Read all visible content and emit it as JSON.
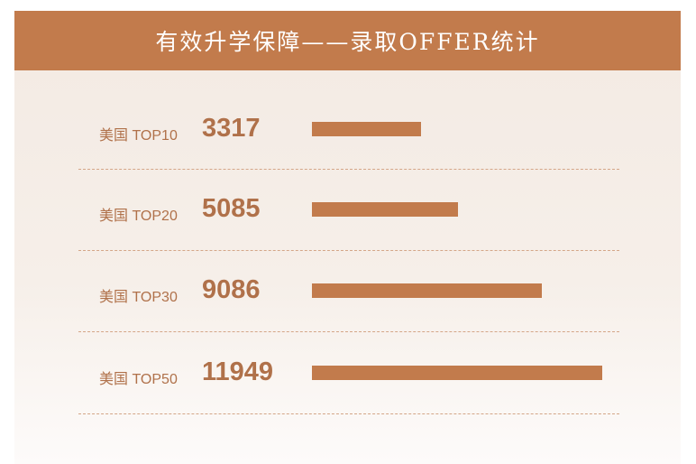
{
  "title": "有效升学保障——录取OFFER统计",
  "colors": {
    "accent": "#c27b4c",
    "text": "#b0714a"
  },
  "chart_data": {
    "type": "bar",
    "orientation": "horizontal",
    "title": "有效升学保障——录取OFFER统计",
    "categories": [
      "美国 TOP10",
      "美国 TOP20",
      "美国 TOP30",
      "美国 TOP50"
    ],
    "values": [
      3317,
      5085,
      9086,
      11949
    ],
    "grid": false
  }
}
